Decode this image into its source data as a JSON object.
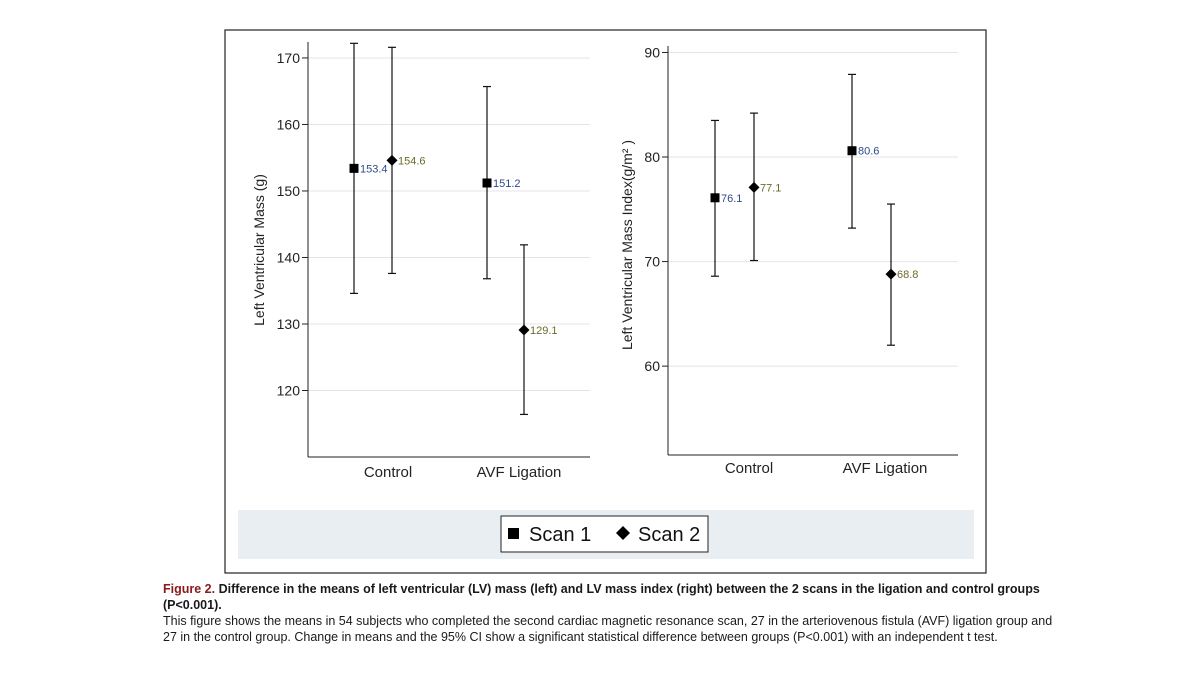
{
  "figure": {
    "legend": [
      {
        "label": "Scan 1",
        "marker": "square"
      },
      {
        "label": "Scan 2",
        "marker": "diamond"
      }
    ],
    "caption": {
      "label": "Figure 2.",
      "title": "Difference in the means of left ventricular (LV) mass (left) and LV mass index (right) between the 2 scans in the ligation and control groups",
      "title_p": "(P<0.001).",
      "body": "This figure shows the means in 54 subjects who completed the second cardiac magnetic resonance scan, 27 in the arteriovenous fistula (AVF) ligation group and 27 in the control group. Change in means and the 95% CI show a significant statistical difference between groups (P<0.001) with an independent t test."
    },
    "colors": {
      "label_scan1": "#2e4a8a",
      "label_scan2": "#6b6b2a",
      "grid": "#e4e4e4",
      "legend_bg": "#e9eef2"
    }
  },
  "chart_data": [
    {
      "type": "scatter",
      "title": "",
      "ylabel": "Left Ventricular Mass (g)",
      "xlabel": "",
      "categories": [
        "Control",
        "AVF Ligation"
      ],
      "ylim": [
        110,
        173
      ],
      "yticks": [
        120,
        130,
        140,
        150,
        160,
        170
      ],
      "grid": true,
      "series": [
        {
          "name": "Scan 1",
          "marker": "square",
          "values": [
            153.4,
            151.2
          ],
          "lower": [
            134.6,
            136.8
          ],
          "upper": [
            172.2,
            165.7
          ],
          "labels": [
            "153.4",
            "151.2"
          ]
        },
        {
          "name": "Scan 2",
          "marker": "diamond",
          "values": [
            154.6,
            129.1
          ],
          "lower": [
            137.6,
            116.4
          ],
          "upper": [
            171.6,
            141.9
          ],
          "labels": [
            "154.6",
            "129.1"
          ]
        }
      ]
    },
    {
      "type": "scatter",
      "title": "",
      "ylabel": "Left Ventricular Mass Index(g/m² )",
      "xlabel": "",
      "categories": [
        "Control",
        "AVF Ligation"
      ],
      "ylim": [
        51.5,
        91
      ],
      "yticks": [
        60,
        70,
        80,
        90
      ],
      "grid": true,
      "series": [
        {
          "name": "Scan 1",
          "marker": "square",
          "values": [
            76.1,
            80.6
          ],
          "lower": [
            68.6,
            73.2
          ],
          "upper": [
            83.5,
            87.9
          ],
          "labels": [
            "76.1",
            "80.6"
          ]
        },
        {
          "name": "Scan 2",
          "marker": "diamond",
          "values": [
            77.1,
            68.8
          ],
          "lower": [
            70.1,
            62.0
          ],
          "upper": [
            84.2,
            75.5
          ],
          "labels": [
            "77.1",
            "68.8"
          ]
        }
      ]
    }
  ]
}
